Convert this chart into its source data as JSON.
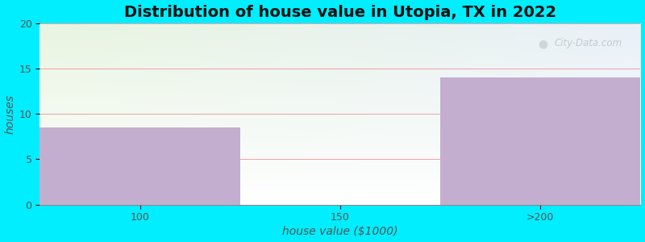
{
  "categories": [
    "100",
    "150",
    ">200"
  ],
  "values": [
    8.5,
    0,
    14
  ],
  "bar_color": "#c4aed0",
  "background_color": "#00eeff",
  "plot_bg_top_left": "#e8f5e0",
  "plot_bg_top_right": "#e8f0f8",
  "plot_bg_bottom": "#ffffff",
  "grid_color": "#f0a0a8",
  "title": "Distribution of house value in Utopia, TX in 2022",
  "xlabel": "house value ($1000)",
  "ylabel": "houses",
  "ylim": [
    0,
    20
  ],
  "yticks": [
    0,
    5,
    10,
    15,
    20
  ],
  "title_fontsize": 14,
  "axis_label_fontsize": 10,
  "tick_fontsize": 9,
  "watermark": "City-Data.com",
  "bar_edges": [
    0,
    1,
    2,
    3
  ],
  "xlim": [
    0,
    3
  ]
}
